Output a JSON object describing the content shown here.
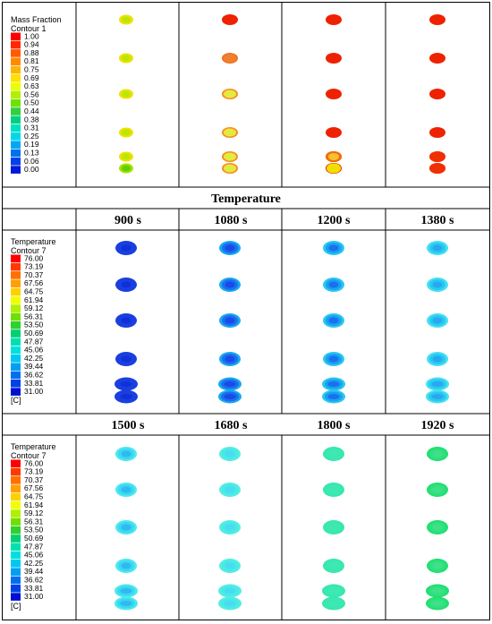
{
  "section_title": "Temperature",
  "rows": [
    {
      "headers": [],
      "legend": {
        "title": "Mass Fraction",
        "subtitle": "Contour 1",
        "ticks": [
          "1.00",
          "0.94",
          "0.88",
          "0.81",
          "0.75",
          "0.69",
          "0.63",
          "0.56",
          "0.50",
          "0.44",
          "0.38",
          "0.31",
          "0.25",
          "0.19",
          "0.13",
          "0.06",
          "0.00"
        ],
        "unit": "",
        "colors": [
          "#ff0000",
          "#ff2a00",
          "#ff5a00",
          "#ff8a00",
          "#ffb400",
          "#ffe000",
          "#e8ff00",
          "#b0f000",
          "#70e000",
          "#30d040",
          "#00d080",
          "#00e0c0",
          "#00d8e8",
          "#00a8f0",
          "#0070f0",
          "#0040e8",
          "#0018d8"
        ]
      },
      "cells": [
        {
          "outer": "#f2e000",
          "ring": "#f2e000",
          "core": "#b8e800",
          "last_outer": "#a8e000",
          "last_core": "#60d000"
        },
        {
          "outer": "#ee2a00",
          "ring": "#ee2a00",
          "core": "#ee2a00",
          "variant": "orange"
        },
        {
          "outer": "#ee2200",
          "ring": "#ee2200",
          "core": "#ee2200",
          "variant": "red"
        },
        {
          "outer": "#ee2200",
          "ring": "#ee2200",
          "core": "#ee2200",
          "variant": "red"
        }
      ]
    },
    {
      "headers": [
        "900 s",
        "1080 s",
        "1200 s",
        "1380 s"
      ],
      "legend": {
        "title": "Temperature",
        "subtitle": "Contour 7",
        "ticks": [
          "76.00",
          "73.19",
          "70.37",
          "67.56",
          "64.75",
          "61.94",
          "59.12",
          "56.31",
          "53.50",
          "50.69",
          "47.87",
          "45.06",
          "42.25",
          "39.44",
          "36.62",
          "33.81",
          "31.00"
        ],
        "unit": "[C]",
        "colors": [
          "#ff0000",
          "#ff3a00",
          "#ff7000",
          "#ffa000",
          "#ffd000",
          "#f0ff00",
          "#b0f000",
          "#70e000",
          "#30d030",
          "#00d070",
          "#00e0b0",
          "#00e0e0",
          "#00c8f0",
          "#00a0f0",
          "#0070f0",
          "#0040e8",
          "#0010d0"
        ]
      },
      "cells": [
        {
          "outer": "#1a3fe0",
          "ring": "#1a3fe0",
          "core": "#1030d8"
        },
        {
          "outer": "#1aa8ee",
          "ring": "#1a6ef0",
          "core": "#1a4ae8"
        },
        {
          "outer": "#28c8f0",
          "ring": "#1aa0f0",
          "core": "#1a70ee"
        },
        {
          "outer": "#46e0f0",
          "ring": "#28c8f0",
          "core": "#28a8f0"
        }
      ]
    },
    {
      "headers": [
        "1500 s",
        "1680 s",
        "1800 s",
        "1920 s"
      ],
      "legend": {
        "title": "Temperature",
        "subtitle": "Contour 7",
        "ticks": [
          "76.00",
          "73.19",
          "70.37",
          "67.56",
          "64.75",
          "61.94",
          "59.12",
          "56.31",
          "53.50",
          "50.69",
          "47.87",
          "45.06",
          "42.25",
          "39.44",
          "36.62",
          "33.81",
          "31.00"
        ],
        "unit": "[C]",
        "colors": [
          "#ff0000",
          "#ff3a00",
          "#ff7000",
          "#ffa000",
          "#ffd000",
          "#f0ff00",
          "#b0f000",
          "#70e000",
          "#30d030",
          "#00d070",
          "#00e0b0",
          "#00e0e0",
          "#00c8f0",
          "#00a0f0",
          "#0070f0",
          "#0040e8",
          "#0010d0"
        ]
      },
      "cells": [
        {
          "outer": "#4ee8f0",
          "ring": "#38d8f0",
          "core": "#30b8f0"
        },
        {
          "outer": "#52eee0",
          "ring": "#48e8e8",
          "core": "#48dcf0"
        },
        {
          "outer": "#38e8a8",
          "ring": "#38e8b8",
          "core": "#40e8b0"
        },
        {
          "outer": "#20e070",
          "ring": "#30e080",
          "core": "#40e088"
        }
      ]
    }
  ]
}
